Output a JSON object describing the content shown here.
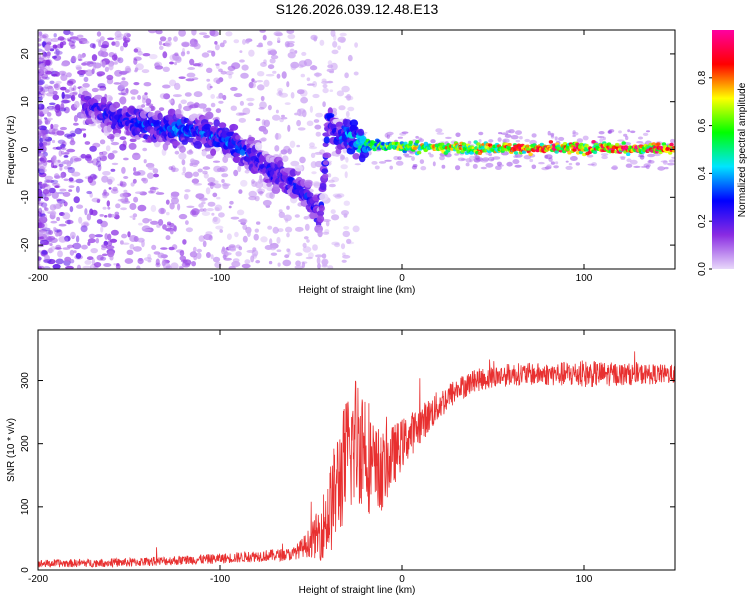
{
  "chart_data": [
    {
      "type": "heatmap",
      "title": "S126.2026.039.12.48.E13",
      "xlabel": "Height of straight line (km)",
      "ylabel": "Frequency (Hz)",
      "xlim": [
        -200,
        150
      ],
      "ylim": [
        -25,
        25
      ],
      "xticks": [
        -200,
        -100,
        0,
        100
      ],
      "yticks": [
        -20,
        -10,
        0,
        10,
        20
      ],
      "colorbar": {
        "label": "Normalized spectral amplitude",
        "range": [
          0,
          1
        ],
        "ticks": [
          0.0,
          0.2,
          0.4,
          0.6,
          0.8
        ],
        "colormap": [
          "#e8d8fa",
          "#8a2be2",
          "#0000ff",
          "#00e5ff",
          "#00ff00",
          "#ffff00",
          "#ff0000",
          "#ff00a0"
        ]
      },
      "ridge": {
        "x": [
          -170,
          -160,
          -150,
          -140,
          -130,
          -120,
          -110,
          -100,
          -90,
          -80,
          -70,
          -60,
          -50,
          -45,
          -40,
          -35,
          -30,
          -25,
          -20,
          -10,
          0,
          20,
          50,
          100,
          150
        ],
        "y": [
          9,
          7,
          6,
          5,
          4.5,
          4,
          3.5,
          2.5,
          0.5,
          -2,
          -5,
          -7,
          -10,
          -15,
          7,
          2,
          3,
          2,
          1,
          0.8,
          0.6,
          0.4,
          0.3,
          0.2,
          0.3
        ],
        "amplitude": [
          0.25,
          0.3,
          0.3,
          0.35,
          0.35,
          0.4,
          0.35,
          0.35,
          0.35,
          0.3,
          0.3,
          0.3,
          0.3,
          0.25,
          0.3,
          0.3,
          0.4,
          0.45,
          0.55,
          0.6,
          0.7,
          0.75,
          0.8,
          0.9,
          0.9
        ]
      }
    },
    {
      "type": "line",
      "title": "",
      "xlabel": "Height of straight line (km)",
      "ylabel": "SNR (10 * v/v)",
      "xlim": [
        -200,
        150
      ],
      "ylim": [
        0,
        380
      ],
      "xticks": [
        -200,
        -100,
        0,
        100
      ],
      "yticks": [
        0,
        100,
        200,
        300
      ],
      "color": "#e83030",
      "envelope": {
        "x": [
          -200,
          -150,
          -100,
          -80,
          -60,
          -55,
          -50,
          -45,
          -40,
          -35,
          -30,
          -25,
          -20,
          -15,
          -10,
          -5,
          0,
          10,
          20,
          30,
          40,
          50,
          60,
          80,
          100,
          120,
          150
        ],
        "y": [
          10,
          12,
          18,
          22,
          25,
          35,
          45,
          60,
          90,
          140,
          180,
          210,
          200,
          150,
          160,
          180,
          200,
          230,
          260,
          285,
          300,
          305,
          310,
          310,
          310,
          310,
          310
        ],
        "noise": [
          6,
          7,
          8,
          9,
          10,
          15,
          25,
          45,
          70,
          90,
          100,
          110,
          100,
          80,
          60,
          50,
          40,
          30,
          25,
          20,
          18,
          18,
          18,
          18,
          22,
          18,
          15
        ]
      }
    }
  ]
}
